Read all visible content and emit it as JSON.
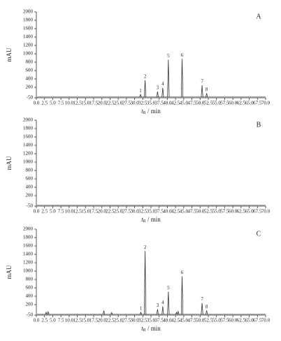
{
  "chart_data": [
    {
      "type": "chromatogram",
      "panel_label": "A",
      "ylabel": "mAU",
      "xlabel": {
        "symbol": "t",
        "subscript": "R",
        "unit": " / min"
      },
      "baseline": -30,
      "color": "#333333",
      "x": [
        31.8,
        33.2,
        37.0,
        38.6,
        40.3,
        44.5,
        50.6,
        52.0
      ],
      "values": [
        30,
        370,
        100,
        190,
        860,
        880,
        250,
        60
      ],
      "peak_labels": [
        "1",
        "2",
        "3",
        "4",
        "5",
        "6",
        "7",
        "8"
      ],
      "xlim": [
        0,
        70
      ],
      "ylim": [
        -50,
        2000
      ],
      "yticks": [
        -50,
        200,
        400,
        600,
        800,
        1000,
        1200,
        1400,
        1600,
        1800,
        2000
      ],
      "xticks": [
        {
          "value": 0,
          "label": "0.0"
        },
        {
          "value": 2.5,
          "label": "2.5"
        },
        {
          "value": 5,
          "label": "5.0"
        },
        {
          "value": 7.5,
          "label": "7.5"
        },
        {
          "value": 10,
          "label": "10.0"
        },
        {
          "value": 12.5,
          "label": "12.5"
        },
        {
          "value": 15,
          "label": "15.0"
        },
        {
          "value": 17.5,
          "label": "17.5"
        },
        {
          "value": 20,
          "label": "20.0"
        },
        {
          "value": 22.5,
          "label": "22.5"
        },
        {
          "value": 25,
          "label": "25.0"
        },
        {
          "value": 27.5,
          "label": "27.5"
        },
        {
          "value": 30,
          "label": "30.0"
        },
        {
          "value": 32.5,
          "label": "32.5"
        },
        {
          "value": 35,
          "label": "35.0"
        },
        {
          "value": 37.5,
          "label": "37.5"
        },
        {
          "value": 40,
          "label": "40.0"
        },
        {
          "value": 42.5,
          "label": "42.5"
        },
        {
          "value": 45,
          "label": "45.0"
        },
        {
          "value": 47.5,
          "label": "47.5"
        },
        {
          "value": 50,
          "label": "50.0"
        },
        {
          "value": 52.5,
          "label": "52.5"
        },
        {
          "value": 55,
          "label": "55.0"
        },
        {
          "value": 57.5,
          "label": "57.5"
        },
        {
          "value": 60,
          "label": "60.0"
        },
        {
          "value": 62.5,
          "label": "62.5"
        },
        {
          "value": 65,
          "label": "65.0"
        },
        {
          "value": 67.5,
          "label": "67.5"
        },
        {
          "value": 70,
          "label": "70.0"
        }
      ]
    },
    {
      "type": "chromatogram",
      "panel_label": "B",
      "ylabel": "mAU",
      "xlabel": {
        "symbol": "t",
        "subscript": "R",
        "unit": " / min"
      },
      "baseline": -30,
      "color": "#333333",
      "x": [],
      "values": [],
      "peak_labels": [],
      "xlim": [
        0,
        70
      ],
      "ylim": [
        -50,
        2000
      ],
      "yticks": [
        -50,
        200,
        400,
        600,
        800,
        1000,
        1200,
        1400,
        1600,
        1800,
        2000
      ],
      "xticks": [
        {
          "value": 0,
          "label": "0.0"
        },
        {
          "value": 2.5,
          "label": "2.5"
        },
        {
          "value": 5,
          "label": "5.0"
        },
        {
          "value": 7.5,
          "label": "7.5"
        },
        {
          "value": 10,
          "label": "10.0"
        },
        {
          "value": 12.5,
          "label": "12.5"
        },
        {
          "value": 15,
          "label": "15.0"
        },
        {
          "value": 17.5,
          "label": "17.5"
        },
        {
          "value": 20,
          "label": "20.0"
        },
        {
          "value": 22.5,
          "label": "22.5"
        },
        {
          "value": 25,
          "label": "25.0"
        },
        {
          "value": 27.5,
          "label": "27.5"
        },
        {
          "value": 30,
          "label": "30.0"
        },
        {
          "value": 32.5,
          "label": "32.5"
        },
        {
          "value": 35,
          "label": "35.0"
        },
        {
          "value": 37.5,
          "label": "37.5"
        },
        {
          "value": 40,
          "label": "40.0"
        },
        {
          "value": 42.5,
          "label": "42.5"
        },
        {
          "value": 45,
          "label": "45.0"
        },
        {
          "value": 47.5,
          "label": "47.5"
        },
        {
          "value": 50,
          "label": "50.0"
        },
        {
          "value": 52.5,
          "label": "52.5"
        },
        {
          "value": 55,
          "label": "55.0"
        },
        {
          "value": 57.5,
          "label": "57.5"
        },
        {
          "value": 60,
          "label": "60.0"
        },
        {
          "value": 62.5,
          "label": "62.5"
        },
        {
          "value": 65,
          "label": "65.0"
        },
        {
          "value": 67.5,
          "label": "67.5"
        },
        {
          "value": 70,
          "label": "70.0"
        }
      ]
    },
    {
      "type": "chromatogram",
      "panel_label": "C",
      "ylabel": "mAU",
      "xlabel": {
        "symbol": "t",
        "subscript": "R",
        "unit": " / min"
      },
      "baseline": -30,
      "color": "#333333",
      "x": [
        3.0,
        3.6,
        20.6,
        23.0,
        31.9,
        33.2,
        37.0,
        38.6,
        40.3,
        42.8,
        43.3,
        44.5,
        50.6,
        52.0
      ],
      "values": [
        20,
        30,
        60,
        10,
        20,
        1480,
        90,
        160,
        510,
        20,
        40,
        880,
        240,
        60
      ],
      "peak_labels": [
        null,
        null,
        null,
        null,
        "1",
        "2",
        "3",
        "4",
        "5",
        null,
        null,
        "6",
        "7",
        "8"
      ],
      "xlim": [
        0,
        70
      ],
      "ylim": [
        -50,
        2000
      ],
      "yticks": [
        -50,
        200,
        400,
        600,
        800,
        1000,
        1200,
        1400,
        1600,
        1800,
        2000
      ],
      "xticks": [
        {
          "value": 0,
          "label": "0.0"
        },
        {
          "value": 2.5,
          "label": "2.5"
        },
        {
          "value": 5,
          "label": "5.0"
        },
        {
          "value": 7.5,
          "label": "7.5"
        },
        {
          "value": 10,
          "label": "10.0"
        },
        {
          "value": 12.5,
          "label": "12.5"
        },
        {
          "value": 15,
          "label": "15.0"
        },
        {
          "value": 17.5,
          "label": "17.5"
        },
        {
          "value": 20,
          "label": "20.0"
        },
        {
          "value": 22.5,
          "label": "22.5"
        },
        {
          "value": 25,
          "label": "25.0"
        },
        {
          "value": 27.5,
          "label": "27.5"
        },
        {
          "value": 30,
          "label": "30.0"
        },
        {
          "value": 32.5,
          "label": "32.5"
        },
        {
          "value": 35,
          "label": "35.0"
        },
        {
          "value": 37.5,
          "label": "37.5"
        },
        {
          "value": 40,
          "label": "40.0"
        },
        {
          "value": 42.5,
          "label": "42.5"
        },
        {
          "value": 45,
          "label": "45.0"
        },
        {
          "value": 47.5,
          "label": "47.5"
        },
        {
          "value": 50,
          "label": "50.0"
        },
        {
          "value": 52.5,
          "label": "52.5"
        },
        {
          "value": 55,
          "label": "55.0"
        },
        {
          "value": 57.5,
          "label": "57.5"
        },
        {
          "value": 60,
          "label": "60.0"
        },
        {
          "value": 62.5,
          "label": "62.5"
        },
        {
          "value": 65,
          "label": "65.0"
        },
        {
          "value": 67.5,
          "label": "67.5"
        },
        {
          "value": 70,
          "label": "70.0"
        }
      ]
    }
  ]
}
